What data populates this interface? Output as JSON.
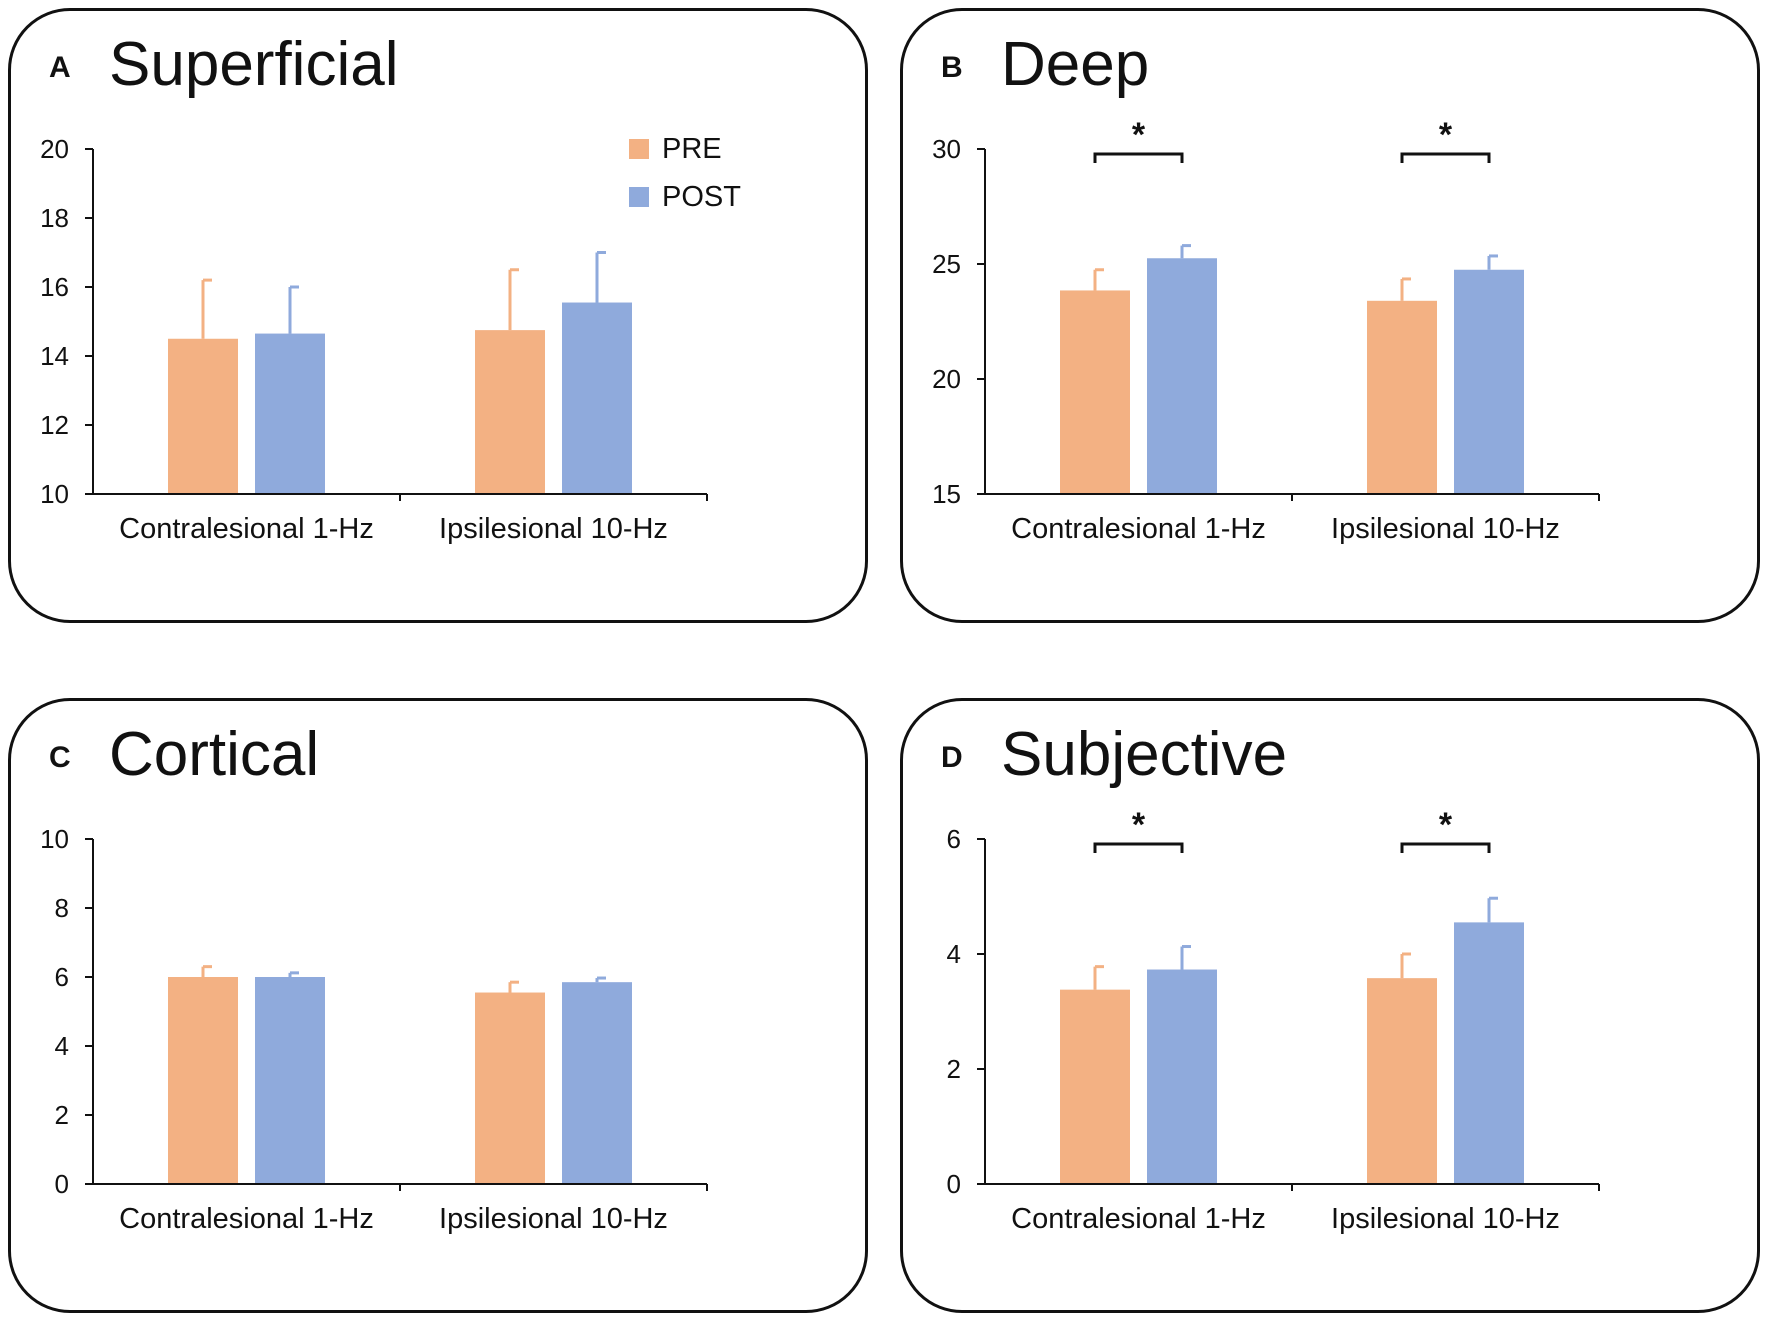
{
  "colors": {
    "pre": "#F3B183",
    "post": "#8FAADC",
    "axis": "#111111"
  },
  "chart_data": [
    {
      "type": "bar",
      "panel": "A",
      "title": "Superficial",
      "categories": [
        "Contralesional 1-Hz",
        "Ipsilesional 10-Hz"
      ],
      "series": [
        {
          "name": "PRE",
          "values": [
            14.5,
            14.75
          ],
          "errors": [
            1.7,
            1.75
          ]
        },
        {
          "name": "POST",
          "values": [
            14.65,
            15.55
          ],
          "errors": [
            1.35,
            1.45
          ]
        }
      ],
      "ylim": [
        10,
        20
      ],
      "yticks": [
        "10",
        "12",
        "14",
        "16",
        "18",
        "20"
      ],
      "legend": [
        "PRE",
        "POST"
      ],
      "legend_position": "top-right",
      "significance": []
    },
    {
      "type": "bar",
      "panel": "B",
      "title": "Deep",
      "categories": [
        "Contralesional 1-Hz",
        "Ipsilesional 10-Hz"
      ],
      "series": [
        {
          "name": "PRE",
          "values": [
            23.85,
            23.4
          ],
          "errors": [
            0.9,
            0.95
          ]
        },
        {
          "name": "POST",
          "values": [
            25.25,
            24.75
          ],
          "errors": [
            0.55,
            0.6
          ]
        }
      ],
      "ylim": [
        15,
        30
      ],
      "yticks": [
        "15",
        "20",
        "25",
        "30"
      ],
      "significance": [
        "*",
        "*"
      ]
    },
    {
      "type": "bar",
      "panel": "C",
      "title": "Cortical",
      "categories": [
        "Contralesional 1-Hz",
        "Ipsilesional 10-Hz"
      ],
      "series": [
        {
          "name": "PRE",
          "values": [
            6.0,
            5.55
          ],
          "errors": [
            0.3,
            0.3
          ]
        },
        {
          "name": "POST",
          "values": [
            6.0,
            5.85
          ],
          "errors": [
            0.12,
            0.12
          ]
        }
      ],
      "ylim": [
        0,
        10
      ],
      "yticks": [
        "0",
        "2",
        "4",
        "6",
        "8",
        "10"
      ],
      "significance": []
    },
    {
      "type": "bar",
      "panel": "D",
      "title": "Subjective",
      "categories": [
        "Contralesional 1-Hz",
        "Ipsilesional 10-Hz"
      ],
      "series": [
        {
          "name": "PRE",
          "values": [
            3.38,
            3.58
          ],
          "errors": [
            0.4,
            0.42
          ]
        },
        {
          "name": "POST",
          "values": [
            3.73,
            4.55
          ],
          "errors": [
            0.4,
            0.42
          ]
        }
      ],
      "ylim": [
        0,
        6
      ],
      "yticks": [
        "0",
        "2",
        "4",
        "6"
      ],
      "significance": [
        "*",
        "*"
      ]
    }
  ]
}
